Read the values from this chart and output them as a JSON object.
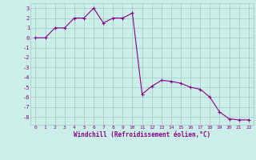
{
  "x": [
    0,
    1,
    2,
    3,
    4,
    5,
    6,
    7,
    8,
    9,
    10,
    11,
    12,
    13,
    14,
    15,
    16,
    17,
    18,
    19,
    20,
    21,
    22
  ],
  "y": [
    0,
    0,
    1,
    1,
    2,
    2,
    3,
    1.5,
    2,
    2,
    2.5,
    -5.7,
    -4.9,
    -4.3,
    -4.4,
    -4.6,
    -5.0,
    -5.2,
    -6.0,
    -7.5,
    -8.2,
    -8.3,
    -8.3
  ],
  "line_color": "#880088",
  "marker_color": "#880088",
  "bg_color": "#cceee8",
  "grid_color": "#aacccc",
  "xlabel": "Windchill (Refroidissement éolien,°C)",
  "xlabel_color": "#880088",
  "xlim": [
    -0.5,
    22.5
  ],
  "ylim": [
    -8.8,
    3.5
  ],
  "yticks": [
    3,
    2,
    1,
    0,
    -1,
    -2,
    -3,
    -4,
    -5,
    -6,
    -7,
    -8
  ],
  "xticks": [
    0,
    1,
    2,
    3,
    4,
    5,
    6,
    7,
    8,
    9,
    10,
    11,
    12,
    13,
    14,
    15,
    16,
    17,
    18,
    19,
    20,
    21,
    22
  ]
}
